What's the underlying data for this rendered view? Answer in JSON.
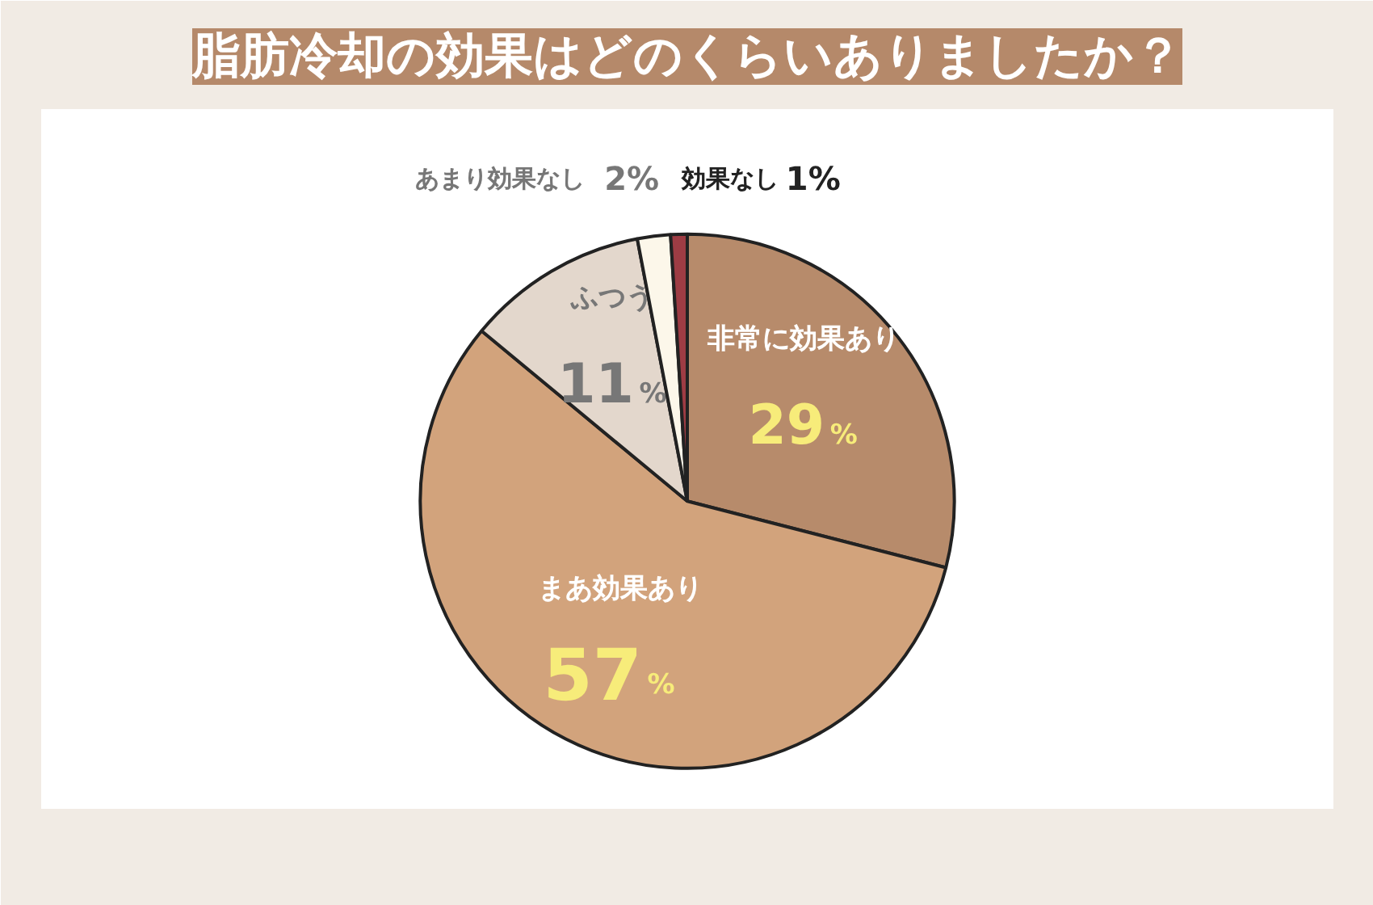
{
  "chart_data": {
    "type": "pie",
    "title": "脂肪冷却の効果はどのくらいありましたか？",
    "categories": [
      "非常に効果あり",
      "まあ効果あり",
      "ふつう",
      "あまり効果なし",
      "効果なし"
    ],
    "values": [
      29,
      57,
      11,
      2,
      1
    ],
    "colors": [
      "#b78b6b",
      "#d2a37c",
      "#e3d7cc",
      "#fcf7ea",
      "#9e3c44"
    ],
    "value_labels": [
      "29%",
      "57%",
      "11%",
      "2%",
      "1%"
    ]
  }
}
